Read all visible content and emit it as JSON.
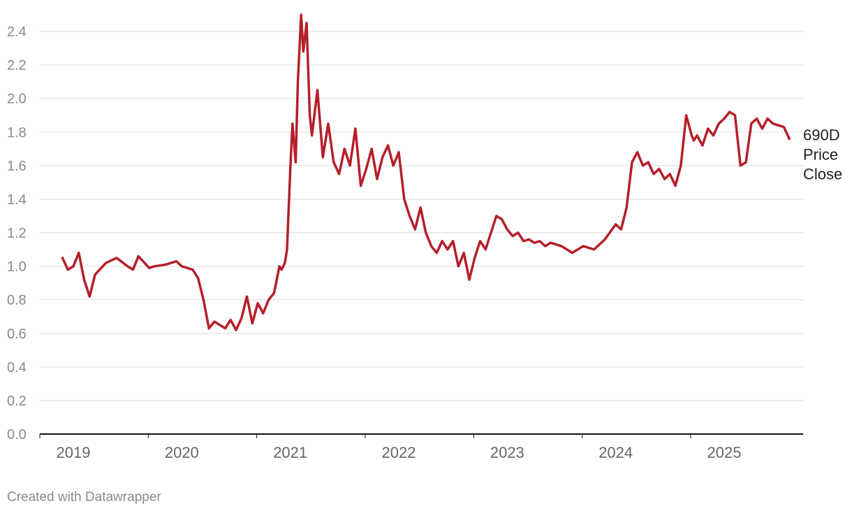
{
  "chart_data": {
    "type": "line",
    "title": "",
    "xlabel": "",
    "ylabel": "",
    "ylim": [
      0,
      2.5
    ],
    "yticks": [
      "0.0",
      "0.2",
      "0.4",
      "0.6",
      "0.8",
      "1.0",
      "1.2",
      "1.4",
      "1.6",
      "1.8",
      "2.0",
      "2.2",
      "2.4"
    ],
    "xticks": [
      "2019",
      "2020",
      "2021",
      "2022",
      "2023",
      "2024",
      "2025"
    ],
    "grid": true,
    "series": [
      {
        "name": "690D Price Close",
        "color": "#b51f2a",
        "x": [
          2018.9,
          2018.95,
          2019.0,
          2019.05,
          2019.1,
          2019.15,
          2019.2,
          2019.3,
          2019.4,
          2019.5,
          2019.55,
          2019.6,
          2019.7,
          2019.75,
          2019.85,
          2019.95,
          2020.0,
          2020.05,
          2020.1,
          2020.15,
          2020.2,
          2020.25,
          2020.3,
          2020.4,
          2020.45,
          2020.5,
          2020.55,
          2020.6,
          2020.65,
          2020.7,
          2020.75,
          2020.8,
          2020.85,
          2020.9,
          2020.92,
          2020.95,
          2020.97,
          2021.0,
          2021.02,
          2021.05,
          2021.07,
          2021.1,
          2021.12,
          2021.15,
          2021.18,
          2021.2,
          2021.25,
          2021.3,
          2021.35,
          2021.4,
          2021.45,
          2021.5,
          2021.55,
          2021.6,
          2021.65,
          2021.7,
          2021.75,
          2021.8,
          2021.85,
          2021.9,
          2021.95,
          2022.0,
          2022.05,
          2022.1,
          2022.15,
          2022.2,
          2022.25,
          2022.3,
          2022.35,
          2022.4,
          2022.45,
          2022.5,
          2022.55,
          2022.6,
          2022.65,
          2022.7,
          2022.75,
          2022.8,
          2022.85,
          2022.9,
          2022.95,
          2023.0,
          2023.05,
          2023.1,
          2023.15,
          2023.2,
          2023.25,
          2023.3,
          2023.35,
          2023.4,
          2023.5,
          2023.6,
          2023.7,
          2023.8,
          2023.9,
          2024.0,
          2024.05,
          2024.1,
          2024.15,
          2024.2,
          2024.25,
          2024.3,
          2024.35,
          2024.4,
          2024.45,
          2024.5,
          2024.55,
          2024.6,
          2024.65,
          2024.7,
          2024.72,
          2024.75,
          2024.8,
          2024.85,
          2024.9,
          2024.95,
          2025.0,
          2025.05,
          2025.1,
          2025.15,
          2025.2,
          2025.25,
          2025.3,
          2025.35,
          2025.4,
          2025.45,
          2025.5,
          2025.55,
          2025.6
        ],
        "y": [
          1.05,
          0.98,
          1.0,
          1.08,
          0.92,
          0.82,
          0.95,
          1.02,
          1.05,
          1.0,
          0.98,
          1.06,
          0.99,
          1.0,
          1.01,
          1.03,
          1.0,
          0.99,
          0.98,
          0.93,
          0.8,
          0.63,
          0.67,
          0.63,
          0.68,
          0.62,
          0.69,
          0.82,
          0.66,
          0.78,
          0.72,
          0.8,
          0.84,
          1.0,
          0.98,
          1.02,
          1.1,
          1.58,
          1.85,
          1.62,
          2.1,
          2.5,
          2.28,
          2.45,
          1.9,
          1.78,
          2.05,
          1.65,
          1.85,
          1.62,
          1.55,
          1.7,
          1.6,
          1.82,
          1.48,
          1.58,
          1.7,
          1.52,
          1.65,
          1.72,
          1.6,
          1.68,
          1.4,
          1.3,
          1.22,
          1.35,
          1.2,
          1.12,
          1.08,
          1.15,
          1.1,
          1.15,
          1.0,
          1.08,
          0.92,
          1.05,
          1.15,
          1.1,
          1.2,
          1.3,
          1.28,
          1.22,
          1.18,
          1.2,
          1.15,
          1.16,
          1.14,
          1.15,
          1.12,
          1.14,
          1.12,
          1.08,
          1.12,
          1.1,
          1.16,
          1.25,
          1.22,
          1.35,
          1.62,
          1.68,
          1.6,
          1.62,
          1.55,
          1.58,
          1.52,
          1.55,
          1.48,
          1.6,
          1.9,
          1.78,
          1.75,
          1.78,
          1.72,
          1.82,
          1.78,
          1.85,
          1.88,
          1.92,
          1.9,
          1.6,
          1.62,
          1.85,
          1.88,
          1.82,
          1.88,
          1.85,
          1.84,
          1.83,
          1.76
        ]
      }
    ],
    "footer": "Created with Datawrapper"
  },
  "labels": {
    "series_label_lines": [
      "690D",
      "Price",
      "Close"
    ],
    "footer": "Created with Datawrapper"
  }
}
